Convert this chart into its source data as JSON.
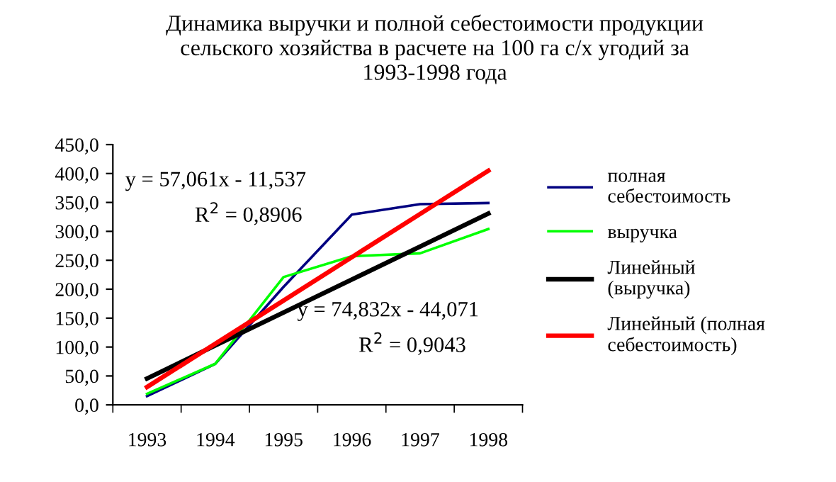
{
  "chart_data": {
    "type": "line",
    "title": "Динамика выручки и полной себестоимости продукции\nсельского хозяйства в расчете на 100 га с/х угодий за\n1993-1998 года",
    "categories": [
      "1993",
      "1994",
      "1995",
      "1996",
      "1997",
      "1998"
    ],
    "series": [
      {
        "name": "полная\nсебестоимость",
        "color": "#000080",
        "values": [
          15,
          71,
          204,
          329,
          347,
          349
        ]
      },
      {
        "name": "выручка",
        "color": "#00ff00",
        "values": [
          19,
          71,
          221,
          257,
          262,
          304
        ]
      },
      {
        "name": "Линейный\n(выручка)",
        "color": "#000000",
        "values": [
          45.5,
          102.6,
          159.6,
          216.7,
          273.8,
          330.8
        ]
      },
      {
        "name": "Линейный (полная\nсебестоимость)",
        "color": "#ff0000",
        "values": [
          30.8,
          105.6,
          180.4,
          255.3,
          330.1,
          404.9
        ]
      }
    ],
    "ylim": [
      0,
      450
    ],
    "yticks": [
      {
        "value": 0,
        "label": "0,0"
      },
      {
        "value": 50,
        "label": "50,0"
      },
      {
        "value": 100,
        "label": "100,0"
      },
      {
        "value": 150,
        "label": "150,0"
      },
      {
        "value": 200,
        "label": "200,0"
      },
      {
        "value": 250,
        "label": "250,0"
      },
      {
        "value": 300,
        "label": "300,0"
      },
      {
        "value": 350,
        "label": "350,0"
      },
      {
        "value": 400,
        "label": "400,0"
      },
      {
        "value": 450,
        "label": "450,0"
      }
    ],
    "annotations": [
      "y = 57,061x - 11,537",
      "R$^{2}$ = 0,8906",
      "y = 74,832x - 44,071",
      "R$^{2}$ = 0,9043"
    ],
    "legend": "right",
    "grid": false,
    "marker": "none",
    "line_style": "solid"
  }
}
